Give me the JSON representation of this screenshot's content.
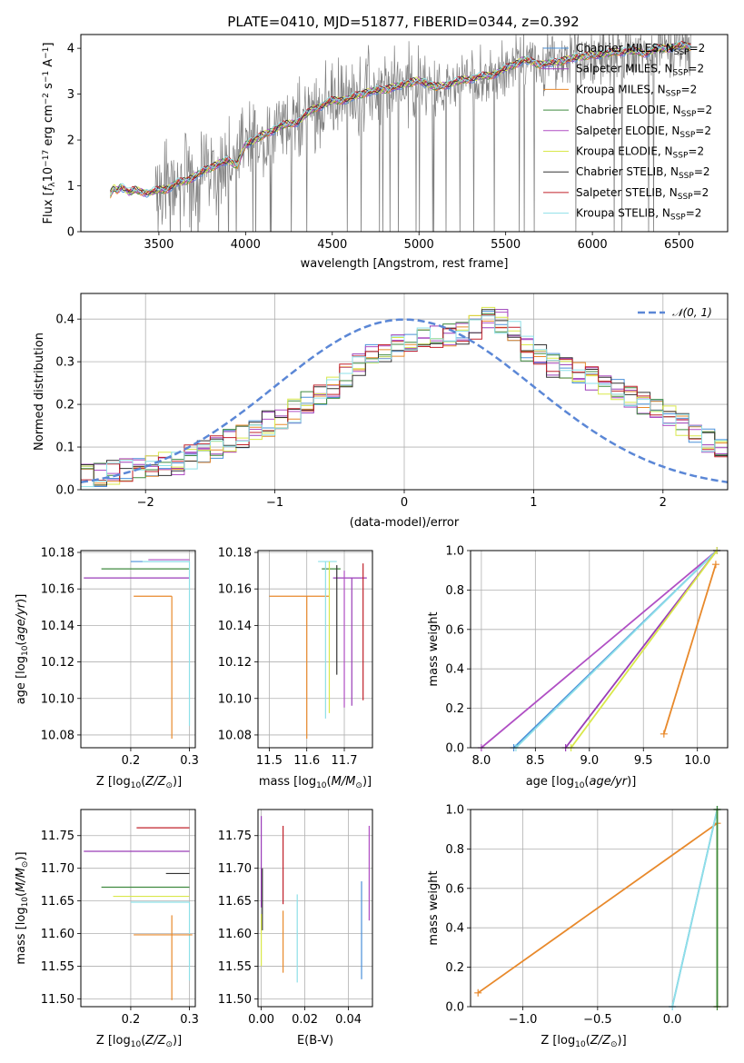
{
  "figure": {
    "title": "PLATE=0410, MJD=51877, FIBERID=0344, z=0.392"
  },
  "colors": {
    "chabrier_miles": "#4a90d9",
    "salpeter_miles": "#9a3db8",
    "kroupa_miles": "#e8892b",
    "chabrier_elodie": "#3f8a3f",
    "salpeter_elodie": "#b04fc4",
    "kroupa_elodie": "#d9e84a",
    "chabrier_stelib": "#333333",
    "salpeter_stelib": "#c0202a",
    "kroupa_stelib": "#8ee0e8",
    "data": "#808080",
    "normal": "#5b87d6",
    "grid": "#b0b0b0"
  },
  "legend_entries": [
    {
      "label": "Chabrier MILES, N",
      "sub": "SSP",
      "suffix": "=2",
      "color_key": "chabrier_miles"
    },
    {
      "label": "Salpeter MILES, N",
      "sub": "SSP",
      "suffix": "=2",
      "color_key": "salpeter_miles"
    },
    {
      "label": "Kroupa MILES, N",
      "sub": "SSP",
      "suffix": "=2",
      "color_key": "kroupa_miles"
    },
    {
      "label": "Chabrier ELODIE, N",
      "sub": "SSP",
      "suffix": "=2",
      "color_key": "chabrier_elodie"
    },
    {
      "label": "Salpeter ELODIE, N",
      "sub": "SSP",
      "suffix": "=2",
      "color_key": "salpeter_elodie"
    },
    {
      "label": "Kroupa ELODIE, N",
      "sub": "SSP",
      "suffix": "=2",
      "color_key": "kroupa_elodie"
    },
    {
      "label": "Chabrier STELIB, N",
      "sub": "SSP",
      "suffix": "=2",
      "color_key": "chabrier_stelib"
    },
    {
      "label": "Salpeter STELIB, N",
      "sub": "SSP",
      "suffix": "=2",
      "color_key": "salpeter_stelib"
    },
    {
      "label": "Kroupa STELIB, N",
      "sub": "SSP",
      "suffix": "=2",
      "color_key": "kroupa_stelib"
    }
  ],
  "chart_data": [
    {
      "id": "spectrum",
      "type": "line",
      "title": "PLATE=0410, MJD=51877, FIBERID=0344, z=0.392",
      "xlabel": "wavelength [Angstrom, rest frame]",
      "ylabel_parts": [
        "Flux [",
        "f",
        "λ",
        "10",
        "−17",
        " erg cm",
        "−2",
        " s",
        "−1",
        " A",
        "−1",
        "]"
      ],
      "xlim": [
        3050,
        6780
      ],
      "ylim": [
        0,
        4.3
      ],
      "xticks": [
        3500,
        4000,
        4500,
        5000,
        5500,
        6000,
        6500
      ],
      "yticks": [
        0,
        1,
        2,
        3,
        4
      ],
      "grid": false,
      "legend_position": "upper-right",
      "model_continuum": {
        "x": [
          3220,
          3240,
          3260,
          3280,
          3300,
          3330,
          3360,
          3400,
          3450,
          3500,
          3550,
          3600,
          3650,
          3700,
          3750,
          3800,
          3850,
          3900,
          3950,
          4000,
          4100,
          4200,
          4300,
          4400,
          4500,
          4600,
          4700,
          4800,
          4900,
          5000,
          5100,
          5200,
          5300,
          5400,
          5500,
          5600,
          5700,
          5800,
          5900,
          6000,
          6100,
          6200,
          6300,
          6400,
          6500,
          6570
        ],
        "y": [
          0.8,
          0.95,
          0.9,
          1.0,
          0.95,
          0.85,
          0.9,
          0.88,
          0.85,
          0.9,
          0.95,
          1.05,
          1.1,
          1.2,
          1.3,
          1.4,
          1.5,
          1.55,
          1.45,
          1.9,
          2.1,
          2.3,
          2.4,
          2.7,
          2.85,
          2.9,
          3.05,
          3.1,
          3.2,
          3.3,
          3.15,
          3.25,
          3.35,
          3.4,
          3.55,
          3.75,
          3.65,
          3.7,
          3.8,
          3.85,
          3.9,
          3.95,
          3.9,
          4.0,
          4.05,
          4.05
        ]
      },
      "series_names_from_legend": true
    },
    {
      "id": "residuals",
      "type": "line",
      "xlabel": "(data-model)/error",
      "ylabel": "Normed distribution",
      "xlim": [
        -2.5,
        2.5
      ],
      "ylim": [
        0,
        0.46
      ],
      "xticks": [
        -2,
        -1,
        0,
        1,
        2
      ],
      "yticks": [
        0.0,
        0.1,
        0.2,
        0.3,
        0.4
      ],
      "ytick_labels": [
        "0.0",
        "0.1",
        "0.2",
        "0.3",
        "0.4"
      ],
      "xtick_labels": [
        "−2",
        "−1",
        "0",
        "1",
        "2"
      ],
      "grid": true,
      "legend_label": "𝒩(0, 1)",
      "legend_position": "upper-right",
      "normal_curve": {
        "mean": 0,
        "sigma": 1
      },
      "bin_edges_start": -2.5,
      "bin_width": 0.1,
      "histogram_base": [
        0.03,
        0.035,
        0.04,
        0.045,
        0.05,
        0.055,
        0.06,
        0.065,
        0.075,
        0.085,
        0.1,
        0.115,
        0.125,
        0.14,
        0.155,
        0.17,
        0.185,
        0.2,
        0.22,
        0.24,
        0.265,
        0.29,
        0.31,
        0.33,
        0.34,
        0.35,
        0.355,
        0.36,
        0.365,
        0.37,
        0.38,
        0.4,
        0.395,
        0.37,
        0.33,
        0.31,
        0.29,
        0.28,
        0.27,
        0.26,
        0.245,
        0.23,
        0.215,
        0.2,
        0.185,
        0.17,
        0.15,
        0.13,
        0.115,
        0.1,
        0.085,
        0.075,
        0.07,
        0.065,
        0.06,
        0.055,
        0.05,
        0.045,
        0.045,
        0.04
      ]
    },
    {
      "id": "age_vs_Z",
      "type": "scatter",
      "xlabel": "Z [log",
      "ylabel": "age  [log",
      "xlim": [
        0.115,
        0.31
      ],
      "ylim": [
        10.073,
        10.181
      ],
      "xticks": [
        0.2,
        0.3
      ],
      "yticks": [
        10.08,
        10.1,
        10.12,
        10.14,
        10.16,
        10.18
      ],
      "ytick_labels": [
        "10.08",
        "10.10",
        "10.12",
        "10.14",
        "10.16",
        "10.18"
      ],
      "grid": true,
      "points": [
        {
          "color_key": "kroupa_miles",
          "x": 0.27,
          "y": 10.156,
          "xerr_lo": 0.065,
          "yerr_lo": 0.078
        },
        {
          "color_key": "salpeter_miles",
          "x": 0.3,
          "y": 10.166,
          "xerr_lo": 0.18,
          "yerr_lo": 0.0
        },
        {
          "color_key": "chabrier_elodie",
          "x": 0.3,
          "y": 10.171,
          "xerr_lo": 0.15,
          "yerr_lo": 0.0
        },
        {
          "color_key": "chabrier_miles",
          "x": 0.3,
          "y": 10.175,
          "xerr_lo": 0.1,
          "yerr_lo": 0.0
        },
        {
          "color_key": "kroupa_stelib",
          "x": 0.3,
          "y": 10.175,
          "xerr_lo": 0.08,
          "yerr_lo": 0.09
        },
        {
          "color_key": "salpeter_elodie",
          "x": 0.3,
          "y": 10.176,
          "xerr_lo": 0.07,
          "yerr_lo": 0.0
        }
      ]
    },
    {
      "id": "age_vs_mass",
      "type": "scatter",
      "xlabel": "mass [log",
      "xlim": [
        11.47,
        11.775
      ],
      "ylim": [
        10.073,
        10.181
      ],
      "xticks": [
        11.5,
        11.6,
        11.7
      ],
      "xtick_labels": [
        "11.5",
        "11.6",
        "11.7"
      ],
      "yticks": [
        10.08,
        10.1,
        10.12,
        10.14,
        10.16,
        10.18
      ],
      "ytick_labels": [
        "10.08",
        "10.10",
        "10.12",
        "10.14",
        "10.16",
        "10.18"
      ],
      "grid": true,
      "points": [
        {
          "color_key": "kroupa_miles",
          "x": 11.6,
          "y": 10.156,
          "xerr_lo": 0.1,
          "xerr_hi": 0.06,
          "yerr_lo": 0.078
        },
        {
          "color_key": "salpeter_miles",
          "x": 11.72,
          "y": 10.166,
          "xerr_lo": 0.05,
          "xerr_hi": 0.04,
          "yerr_lo": 0.07
        },
        {
          "color_key": "chabrier_elodie",
          "x": 11.67,
          "y": 10.171,
          "xerr_lo": 0.03,
          "xerr_hi": 0.02,
          "yerr_lo": 0.0
        },
        {
          "color_key": "kroupa_stelib",
          "x": 11.65,
          "y": 10.175,
          "xerr_lo": 0.02,
          "xerr_hi": 0.03,
          "yerr_lo": 0.086
        },
        {
          "color_key": "kroupa_elodie",
          "x": 11.66,
          "y": 10.175,
          "xerr_lo": 0.0,
          "xerr_hi": 0.0,
          "yerr_lo": 0.083
        },
        {
          "color_key": "chabrier_stelib",
          "x": 11.68,
          "y": 10.173,
          "xerr_lo": 0.0,
          "xerr_hi": 0.0,
          "yerr_lo": 0.06
        },
        {
          "color_key": "salpeter_elodie",
          "x": 11.7,
          "y": 10.17,
          "xerr_lo": 0.0,
          "xerr_hi": 0.0,
          "yerr_lo": 0.075
        },
        {
          "color_key": "salpeter_stelib",
          "x": 11.75,
          "y": 10.174,
          "xerr_lo": 0.0,
          "xerr_hi": 0.0,
          "yerr_lo": 0.075
        }
      ]
    },
    {
      "id": "mass_weight_vs_age",
      "type": "line",
      "xlabel": "age  [log",
      "ylabel": "mass weight",
      "xlim": [
        7.9,
        10.28
      ],
      "ylim": [
        0,
        1
      ],
      "xticks": [
        8.0,
        8.5,
        9.0,
        9.5,
        10.0
      ],
      "xtick_labels": [
        "8.0",
        "8.5",
        "9.0",
        "9.5",
        "10.0"
      ],
      "yticks": [
        0.0,
        0.2,
        0.4,
        0.6,
        0.8,
        1.0
      ],
      "ytick_labels": [
        "0.0",
        "0.2",
        "0.4",
        "0.6",
        "0.8",
        "1.0"
      ],
      "grid": true,
      "series": [
        {
          "color_key": "salpeter_elodie",
          "x": [
            8.0,
            10.18
          ],
          "y": [
            0.0,
            1.0
          ]
        },
        {
          "color_key": "chabrier_miles",
          "x": [
            8.3,
            10.18
          ],
          "y": [
            0.0,
            1.0
          ]
        },
        {
          "color_key": "kroupa_stelib",
          "x": [
            8.32,
            10.18
          ],
          "y": [
            0.0,
            1.0
          ]
        },
        {
          "color_key": "salpeter_miles",
          "x": [
            8.78,
            10.18
          ],
          "y": [
            0.0,
            1.0
          ]
        },
        {
          "color_key": "kroupa_elodie",
          "x": [
            8.83,
            10.18
          ],
          "y": [
            0.0,
            1.0
          ]
        },
        {
          "color_key": "kroupa_miles",
          "x": [
            9.69,
            10.17
          ],
          "y": [
            0.07,
            0.93
          ]
        }
      ]
    },
    {
      "id": "mass_vs_Z",
      "type": "scatter",
      "xlabel": "Z [log",
      "ylabel": "mass [log",
      "xlim": [
        0.115,
        0.31
      ],
      "ylim": [
        11.488,
        11.79
      ],
      "xticks": [
        0.2,
        0.3
      ],
      "yticks": [
        11.5,
        11.55,
        11.6,
        11.65,
        11.7,
        11.75
      ],
      "ytick_labels": [
        "11.50",
        "11.55",
        "11.60",
        "11.65",
        "11.70",
        "11.75"
      ],
      "grid": true,
      "points": [
        {
          "color_key": "salpeter_stelib",
          "x": 0.3,
          "y": 11.762,
          "xerr_lo": 0.09,
          "yerr_lo": 0.0
        },
        {
          "color_key": "salpeter_miles",
          "x": 0.3,
          "y": 11.726,
          "xerr_lo": 0.18,
          "yerr_lo": 0.0
        },
        {
          "color_key": "chabrier_stelib",
          "x": 0.3,
          "y": 11.692,
          "xerr_lo": 0.04,
          "yerr_lo": 0.0
        },
        {
          "color_key": "chabrier_elodie",
          "x": 0.3,
          "y": 11.671,
          "xerr_lo": 0.15,
          "yerr_lo": 0.0
        },
        {
          "color_key": "kroupa_elodie",
          "x": 0.3,
          "y": 11.657,
          "xerr_lo": 0.13,
          "yerr_lo": 0.0
        },
        {
          "color_key": "kroupa_stelib",
          "x": 0.3,
          "y": 11.648,
          "xerr_lo": 0.1,
          "yerr_lo": 0.12
        },
        {
          "color_key": "kroupa_miles",
          "x": 0.27,
          "y": 11.598,
          "xerr_lo": 0.065,
          "xerr_hi": 0.035,
          "yerr_lo": 0.1,
          "yerr_hi": 0.03
        }
      ]
    },
    {
      "id": "mass_vs_ebv",
      "type": "scatter",
      "xlabel": "E(B-V)",
      "xlim": [
        -0.0015,
        0.051
      ],
      "ylim": [
        11.488,
        11.79
      ],
      "xticks": [
        0.0,
        0.02,
        0.04
      ],
      "xtick_labels": [
        "0.00",
        "0.02",
        "0.04"
      ],
      "yticks": [
        11.5,
        11.55,
        11.6,
        11.65,
        11.7,
        11.75
      ],
      "ytick_labels": [
        "11.50",
        "11.55",
        "11.60",
        "11.65",
        "11.70",
        "11.75"
      ],
      "grid": true,
      "points": [
        {
          "color_key": "salpeter_miles",
          "x": 0.0,
          "y_lo": 11.64,
          "y_hi": 11.78
        },
        {
          "color_key": "chabrier_stelib",
          "x": 0.0005,
          "y_lo": 11.605,
          "y_hi": 11.7
        },
        {
          "color_key": "kroupa_elodie",
          "x": 0.0,
          "y_lo": 11.55,
          "y_hi": 11.63
        },
        {
          "color_key": "salpeter_stelib",
          "x": 0.01,
          "y_lo": 11.645,
          "y_hi": 11.765
        },
        {
          "color_key": "kroupa_miles",
          "x": 0.01,
          "y_lo": 11.54,
          "y_hi": 11.635
        },
        {
          "color_key": "kroupa_stelib",
          "x": 0.0165,
          "y_lo": 11.525,
          "y_hi": 11.66
        },
        {
          "color_key": "chabrier_miles",
          "x": 0.046,
          "y_lo": 11.53,
          "y_hi": 11.68
        },
        {
          "color_key": "salpeter_elodie",
          "x": 0.0495,
          "y_lo": 11.62,
          "y_hi": 11.765
        }
      ]
    },
    {
      "id": "mass_weight_vs_Z",
      "type": "line",
      "xlabel": "Z [log",
      "ylabel": "mass weight",
      "xlim": [
        -1.35,
        0.37
      ],
      "ylim": [
        0,
        1
      ],
      "xticks": [
        -1.0,
        -0.5,
        0.0
      ],
      "xtick_labels": [
        "−1.0",
        "−0.5",
        "0.0"
      ],
      "yticks": [
        0.0,
        0.2,
        0.4,
        0.6,
        0.8,
        1.0
      ],
      "ytick_labels": [
        "0.0",
        "0.2",
        "0.4",
        "0.6",
        "0.8",
        "1.0"
      ],
      "grid": true,
      "series": [
        {
          "color_key": "kroupa_miles",
          "x": [
            -1.3,
            0.3
          ],
          "y": [
            0.07,
            0.93
          ]
        },
        {
          "color_key": "chabrier_miles",
          "x": [
            0.0,
            0.3
          ],
          "y": [
            0.0,
            1.0
          ]
        },
        {
          "color_key": "kroupa_stelib",
          "x": [
            0.0,
            0.3
          ],
          "y": [
            0.0,
            1.0
          ]
        },
        {
          "color_key": "kroupa_elodie",
          "x": [
            0.3,
            0.3
          ],
          "y": [
            0.0,
            1.0
          ]
        },
        {
          "color_key": "chabrier_elodie",
          "x": [
            0.3,
            0.3
          ],
          "y": [
            0.0,
            1.0
          ]
        }
      ]
    }
  ]
}
